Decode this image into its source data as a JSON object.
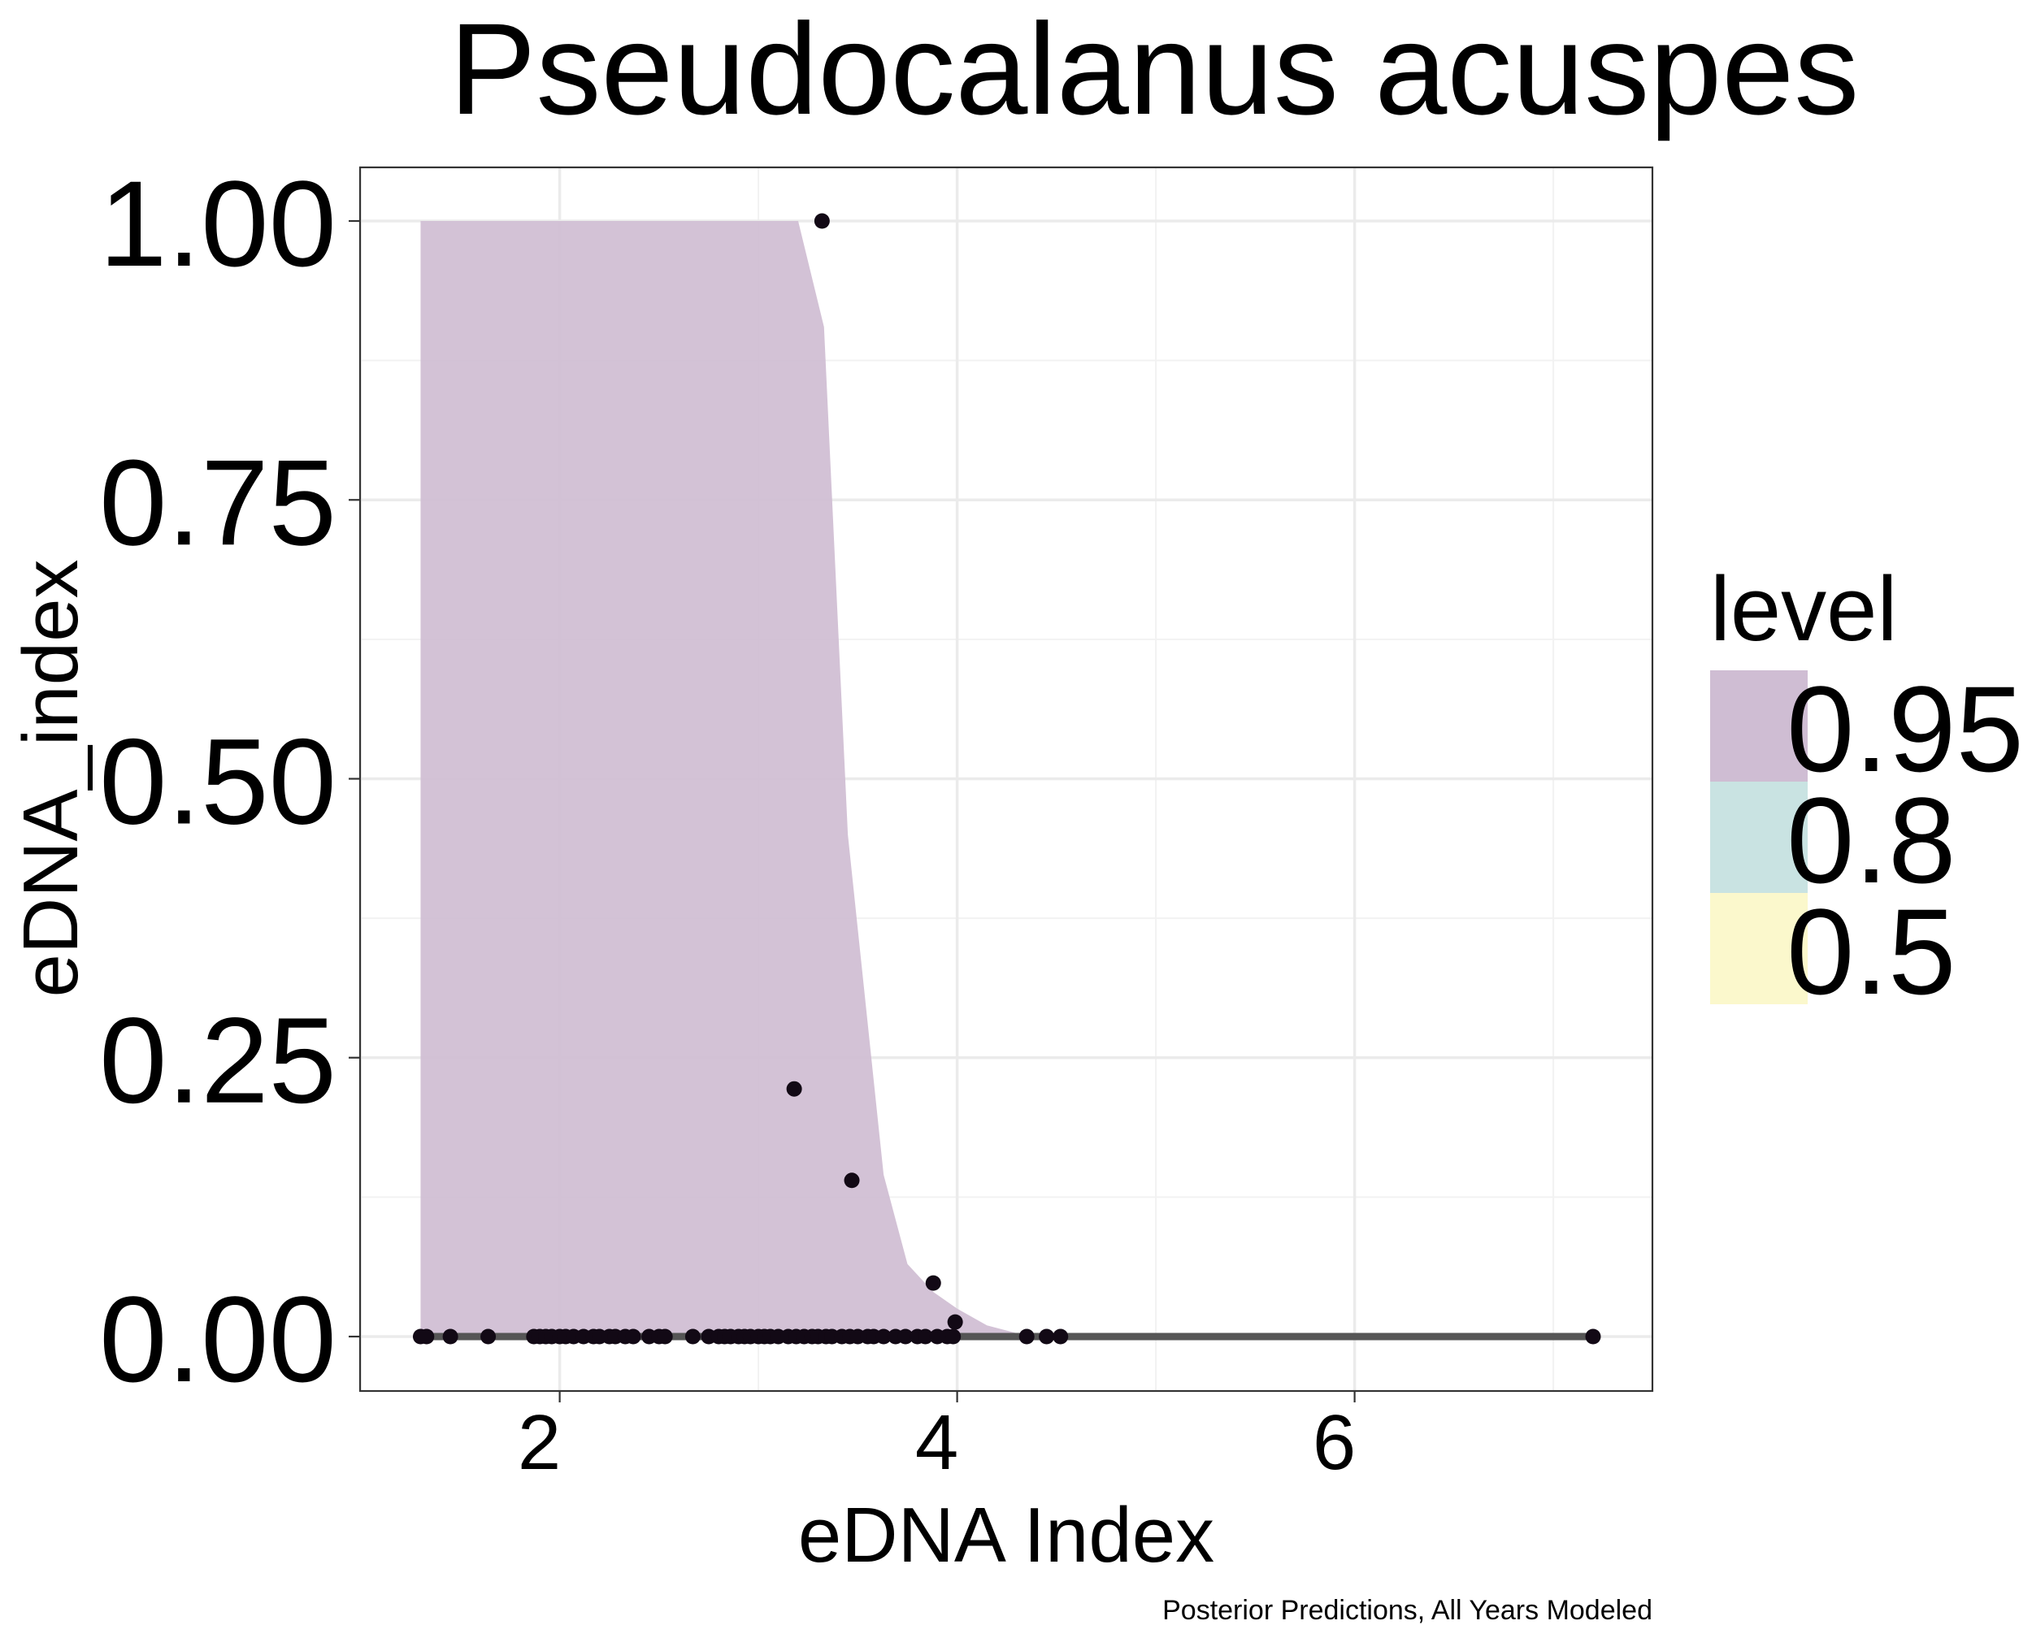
{
  "chart_data": {
    "type": "area",
    "title": "Pseudocalanus acuspes",
    "xlabel": "eDNA Index",
    "ylabel": "eDNA_index",
    "caption": "Posterior Predictions, All Years Modeled",
    "xlim": [
      1.0,
      7.5
    ],
    "ylim": [
      -0.1,
      1.1
    ],
    "x_ticks": [
      2,
      4,
      6
    ],
    "x_tick_labels": [
      "2",
      "4",
      "6"
    ],
    "y_ticks": [
      0,
      0.25,
      0.5,
      0.75,
      1.0
    ],
    "y_tick_labels": [
      "0.00",
      "0.25",
      "0.50",
      "0.75",
      "1.00"
    ],
    "grid": true,
    "legend": {
      "title": "level",
      "position": "right",
      "entries": [
        {
          "label": "0.95",
          "color": "#cfbdd3"
        },
        {
          "label": "0.8",
          "color": "#c9e3e2"
        },
        {
          "label": "0.5",
          "color": "#fbf8cc"
        }
      ]
    },
    "interval_095": {
      "x": [
        1.3,
        3.2,
        3.33,
        3.45,
        3.63,
        3.75,
        3.88,
        4.0,
        4.15,
        4.3,
        4.4
      ],
      "upper": [
        1.0,
        1.0,
        0.905,
        0.45,
        0.145,
        0.065,
        0.04,
        0.025,
        0.01,
        0.003,
        0.0
      ],
      "lower": [
        0,
        0,
        0,
        0,
        0,
        0,
        0,
        0,
        0,
        0,
        0
      ]
    },
    "median_line": {
      "x": [
        1.3,
        7.2
      ],
      "y": [
        0,
        0
      ],
      "color": "#555555"
    },
    "points": {
      "x": [
        3.32,
        3.18,
        3.47,
        3.88,
        3.99,
        1.3,
        1.33,
        1.45,
        1.64,
        1.87,
        1.9,
        1.93,
        1.96,
        2.0,
        2.03,
        2.07,
        2.12,
        2.17,
        2.2,
        2.25,
        2.28,
        2.33,
        2.37,
        2.45,
        2.5,
        2.53,
        2.67,
        2.75,
        2.8,
        2.83,
        2.86,
        2.9,
        2.93,
        2.96,
        3.0,
        3.03,
        3.06,
        3.1,
        3.15,
        3.19,
        3.23,
        3.27,
        3.3,
        3.34,
        3.37,
        3.42,
        3.46,
        3.5,
        3.55,
        3.58,
        3.63,
        3.69,
        3.74,
        3.8,
        3.84,
        3.9,
        3.95,
        3.98,
        4.35,
        4.45,
        4.52,
        7.2
      ],
      "y": [
        1.0,
        0.222,
        0.14,
        0.048,
        0.013,
        0,
        0,
        0,
        0,
        0,
        0,
        0,
        0,
        0,
        0,
        0,
        0,
        0,
        0,
        0,
        0,
        0,
        0,
        0,
        0,
        0,
        0,
        0,
        0,
        0,
        0,
        0,
        0,
        0,
        0,
        0,
        0,
        0,
        0,
        0,
        0,
        0,
        0,
        0,
        0,
        0,
        0,
        0,
        0,
        0,
        0,
        0,
        0,
        0,
        0,
        0,
        0,
        0,
        0,
        0,
        0,
        0
      ]
    }
  }
}
